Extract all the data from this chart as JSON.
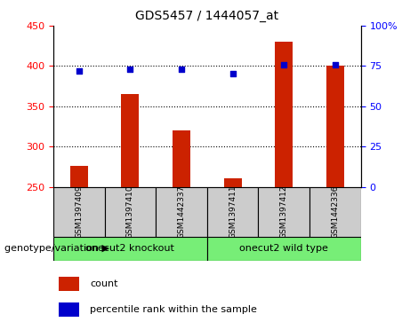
{
  "title": "GDS5457 / 1444057_at",
  "samples": [
    "GSM1397409",
    "GSM1397410",
    "GSM1442337",
    "GSM1397411",
    "GSM1397412",
    "GSM1442336"
  ],
  "counts": [
    276,
    365,
    320,
    261,
    430,
    401
  ],
  "percentiles": [
    72,
    73,
    73,
    70,
    76,
    76
  ],
  "ylim_left": [
    250,
    450
  ],
  "ylim_right": [
    0,
    100
  ],
  "yticks_left": [
    250,
    300,
    350,
    400,
    450
  ],
  "yticks_right": [
    0,
    25,
    50,
    75,
    100
  ],
  "bar_color": "#cc2200",
  "dot_color": "#0000cc",
  "group1_label": "onecut2 knockout",
  "group2_label": "onecut2 wild type",
  "group1_indices": [
    0,
    1,
    2
  ],
  "group2_indices": [
    3,
    4,
    5
  ],
  "group_color": "#77ee77",
  "sample_box_color": "#cccccc",
  "legend_count_label": "count",
  "legend_pct_label": "percentile rank within the sample",
  "xlabel_left": "genotype/variation",
  "grid_lines": [
    300,
    350,
    400
  ],
  "bar_width": 0.35
}
